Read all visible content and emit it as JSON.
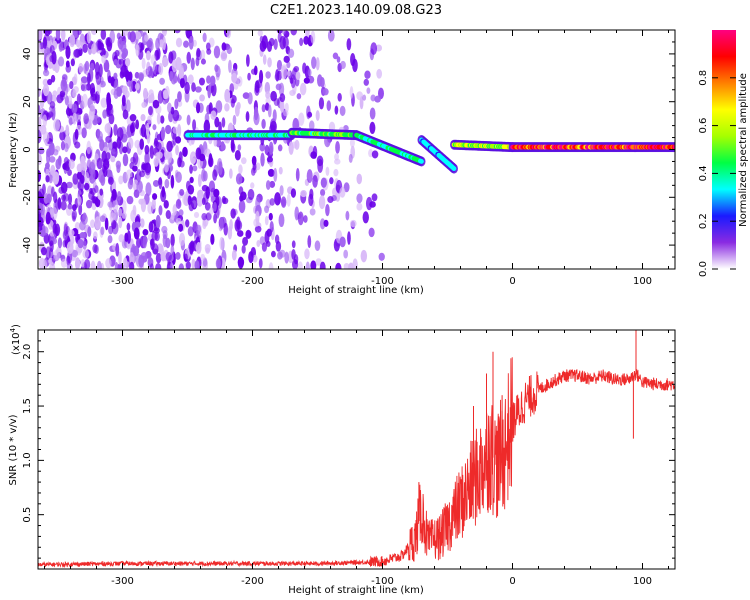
{
  "title": "C2E1.2023.140.09.08.G23",
  "colors": {
    "snr_line": "#ee2a2a",
    "axis": "#000000",
    "colorbar_stops": [
      "#ffffff",
      "#8a2be2",
      "#1a1aff",
      "#00ffff",
      "#00ff44",
      "#a6ff00",
      "#ffff00",
      "#ff8000",
      "#ff0000",
      "#ff0080"
    ]
  },
  "chart_data": [
    {
      "type": "heatmap",
      "name": "spectrogram",
      "xlabel": "Height of straight line (km)",
      "ylabel": "Frequency (Hz)",
      "xlim": [
        -365,
        125
      ],
      "ylim": [
        -50,
        50
      ],
      "xticks": [
        -300,
        -200,
        -100,
        0,
        100
      ],
      "yticks": [
        -40,
        -20,
        0,
        20,
        40
      ],
      "colorbar": {
        "label": "Normalized spectral amplitude",
        "range": [
          0.0,
          1.0
        ],
        "ticks": [
          "0.0",
          "0.2",
          "0.4",
          "0.6",
          "0.8"
        ]
      },
      "trace_segments": [
        {
          "x": [
            -250,
            -170
          ],
          "freq": [
            6,
            6
          ],
          "amplitude": 0.4
        },
        {
          "x": [
            -170,
            -120
          ],
          "freq": [
            7,
            6
          ],
          "amplitude": 0.5
        },
        {
          "x": [
            -120,
            -70
          ],
          "freq": [
            6,
            -5
          ],
          "amplitude": 0.45
        },
        {
          "x": [
            -70,
            -45
          ],
          "freq": [
            4,
            -8
          ],
          "amplitude": 0.35
        },
        {
          "x": [
            -45,
            0
          ],
          "freq": [
            2,
            1
          ],
          "amplitude": 0.6
        },
        {
          "x": [
            0,
            125
          ],
          "freq": [
            1,
            1
          ],
          "amplitude": 0.95
        }
      ],
      "noise_region": {
        "x": [
          -365,
          -100
        ],
        "freq": [
          -50,
          50
        ],
        "amplitude": 0.15
      }
    },
    {
      "type": "line",
      "name": "snr",
      "xlabel": "Height of straight line (km)",
      "ylabel": "SNR (10 * v/v)",
      "multiplier": "(x10",
      "multiplier_exp": "4",
      "multiplier_close": ")",
      "xlim": [
        -365,
        125
      ],
      "ylim": [
        0,
        2.2
      ],
      "xticks": [
        -300,
        -200,
        -100,
        0,
        100
      ],
      "yticks": [
        "0.5",
        "1.0",
        "1.5",
        "2.0"
      ],
      "series": [
        {
          "x": [
            -365,
            -300,
            -200,
            -150,
            -120,
            -100,
            -85,
            -75,
            -70,
            -65,
            -55,
            -45,
            -35,
            -25,
            -18,
            -12,
            -6,
            0,
            10,
            20,
            30,
            40,
            50,
            60,
            70,
            80,
            90,
            95,
            100,
            110,
            125
          ],
          "y": [
            0.04,
            0.05,
            0.05,
            0.05,
            0.06,
            0.07,
            0.12,
            0.28,
            0.55,
            0.25,
            0.3,
            0.5,
            0.7,
            0.9,
            1.1,
            0.95,
            1.1,
            1.35,
            1.55,
            1.65,
            1.72,
            1.78,
            1.78,
            1.75,
            1.78,
            1.74,
            1.75,
            1.8,
            1.72,
            1.7,
            1.7
          ]
        }
      ],
      "spikes": [
        {
          "x": -72,
          "y": 0.8
        },
        {
          "x": -30,
          "y": 1.5
        },
        {
          "x": -20,
          "y": 1.8
        },
        {
          "x": -15,
          "y": 2.0
        },
        {
          "x": -8,
          "y": 1.6
        },
        {
          "x": 95,
          "y": 2.2
        },
        {
          "x": 93,
          "y": 1.2
        }
      ]
    }
  ]
}
